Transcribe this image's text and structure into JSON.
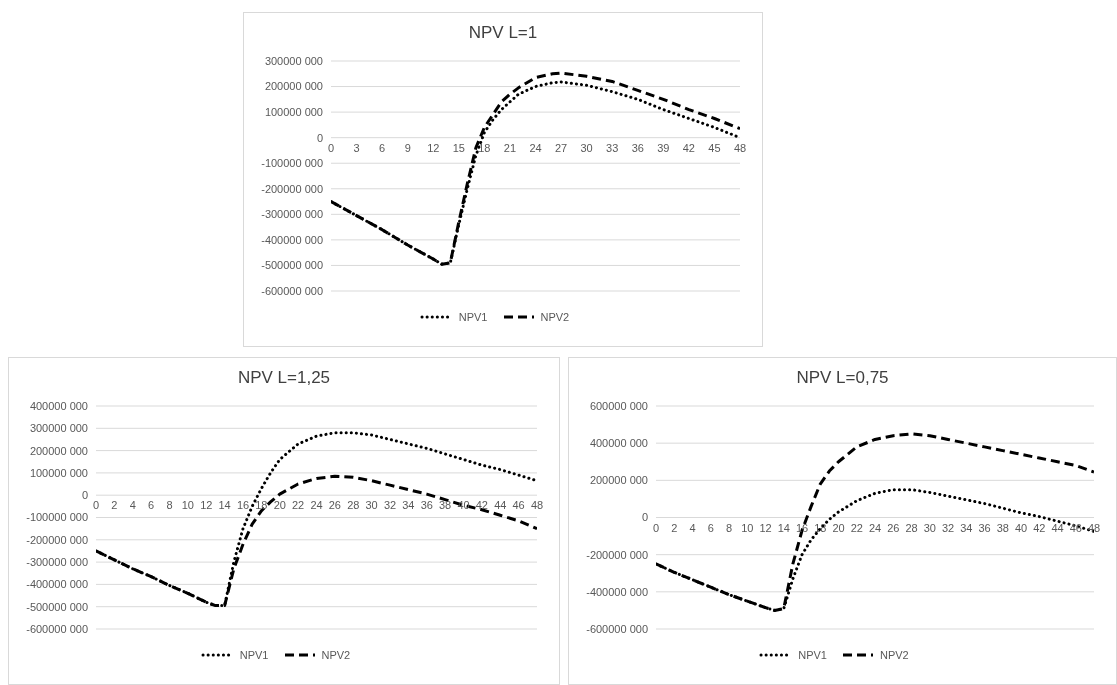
{
  "chart_data": [
    {
      "type": "line",
      "title": "NPV L=1",
      "legend": "bottom",
      "grid": "y",
      "marker": "none",
      "x": [
        0,
        3,
        6,
        9,
        12,
        13,
        14,
        15,
        16,
        17,
        18,
        19,
        20,
        21,
        22,
        24,
        26,
        27,
        30,
        33,
        36,
        39,
        42,
        45,
        48
      ],
      "xlim": [
        0,
        48
      ],
      "xticks": [
        0,
        3,
        6,
        9,
        12,
        15,
        18,
        21,
        24,
        27,
        30,
        33,
        36,
        39,
        42,
        45,
        48
      ],
      "ylim": [
        -600000000,
        300000000
      ],
      "yticks": [
        {
          "value": -600000000,
          "label": "-600000 000"
        },
        {
          "value": -500000000,
          "label": "-500000 000"
        },
        {
          "value": -400000000,
          "label": "-400000 000"
        },
        {
          "value": -300000000,
          "label": "-300000 000"
        },
        {
          "value": -200000000,
          "label": "-200000 000"
        },
        {
          "value": -100000000,
          "label": "-100000 000"
        },
        {
          "value": 0,
          "label": "0"
        },
        {
          "value": 100000000,
          "label": "100000 000"
        },
        {
          "value": 200000000,
          "label": "200000 000"
        },
        {
          "value": 300000000,
          "label": "300000 000"
        }
      ],
      "series": [
        {
          "name": "NPV1",
          "color": "#000000",
          "line_style": "dotted",
          "values": [
            -250000000,
            -305000000,
            -360000000,
            -420000000,
            -475000000,
            -495000000,
            -490000000,
            -340000000,
            -200000000,
            -70000000,
            20000000,
            70000000,
            110000000,
            140000000,
            170000000,
            200000000,
            215000000,
            218000000,
            205000000,
            180000000,
            150000000,
            110000000,
            75000000,
            40000000,
            0
          ]
        },
        {
          "name": "NPV2",
          "color": "#000000",
          "line_style": "dashed",
          "values": [
            -250000000,
            -305000000,
            -360000000,
            -420000000,
            -475000000,
            -495000000,
            -490000000,
            -330000000,
            -180000000,
            -40000000,
            40000000,
            90000000,
            140000000,
            170000000,
            195000000,
            235000000,
            250000000,
            253000000,
            240000000,
            220000000,
            185000000,
            150000000,
            110000000,
            75000000,
            35000000
          ]
        }
      ]
    },
    {
      "type": "line",
      "title": "NPV L=1,25",
      "legend": "bottom",
      "grid": "y",
      "marker": "none",
      "x": [
        0,
        2,
        4,
        6,
        8,
        10,
        12,
        13,
        14,
        15,
        16,
        17,
        18,
        19,
        20,
        22,
        24,
        26,
        28,
        30,
        32,
        34,
        36,
        38,
        40,
        42,
        44,
        46,
        48
      ],
      "xlim": [
        0,
        48
      ],
      "xticks": [
        0,
        2,
        4,
        6,
        8,
        10,
        12,
        14,
        16,
        18,
        20,
        22,
        24,
        26,
        28,
        30,
        32,
        34,
        36,
        38,
        40,
        42,
        44,
        46,
        48
      ],
      "ylim": [
        -600000000,
        400000000
      ],
      "yticks": [
        {
          "value": -600000000,
          "label": "-600000 000"
        },
        {
          "value": -500000000,
          "label": "-500000 000"
        },
        {
          "value": -400000000,
          "label": "-400000 000"
        },
        {
          "value": -300000000,
          "label": "-300000 000"
        },
        {
          "value": -200000000,
          "label": "-200000 000"
        },
        {
          "value": -100000000,
          "label": "-100000 000"
        },
        {
          "value": 0,
          "label": "0"
        },
        {
          "value": 100000000,
          "label": "100000 000"
        },
        {
          "value": 200000000,
          "label": "200000 000"
        },
        {
          "value": 300000000,
          "label": "300000 000"
        },
        {
          "value": 400000000,
          "label": "400000 000"
        }
      ],
      "series": [
        {
          "name": "NPV1",
          "color": "#000000",
          "line_style": "dotted",
          "values": [
            -250000000,
            -290000000,
            -330000000,
            -365000000,
            -405000000,
            -440000000,
            -480000000,
            -495000000,
            -495000000,
            -300000000,
            -150000000,
            -50000000,
            30000000,
            100000000,
            160000000,
            230000000,
            265000000,
            280000000,
            280000000,
            270000000,
            250000000,
            230000000,
            210000000,
            185000000,
            160000000,
            135000000,
            115000000,
            90000000,
            65000000
          ]
        },
        {
          "name": "NPV2",
          "color": "#000000",
          "line_style": "dashed",
          "values": [
            -250000000,
            -290000000,
            -330000000,
            -365000000,
            -405000000,
            -440000000,
            -480000000,
            -495000000,
            -495000000,
            -330000000,
            -220000000,
            -130000000,
            -70000000,
            -30000000,
            5000000,
            50000000,
            75000000,
            85000000,
            80000000,
            65000000,
            45000000,
            25000000,
            5000000,
            -20000000,
            -45000000,
            -65000000,
            -90000000,
            -115000000,
            -150000000
          ]
        }
      ]
    },
    {
      "type": "line",
      "title": "NPV L=0,75",
      "legend": "bottom",
      "grid": "y",
      "marker": "none",
      "x": [
        0,
        2,
        4,
        6,
        8,
        10,
        12,
        13,
        14,
        15,
        16,
        17,
        18,
        19,
        20,
        22,
        24,
        26,
        28,
        30,
        32,
        34,
        36,
        38,
        40,
        42,
        44,
        46,
        48
      ],
      "xlim": [
        0,
        48
      ],
      "xticks": [
        0,
        2,
        4,
        6,
        8,
        10,
        12,
        14,
        16,
        18,
        20,
        22,
        24,
        26,
        28,
        30,
        32,
        34,
        36,
        38,
        40,
        42,
        44,
        46,
        48
      ],
      "ylim": [
        -600000000,
        600000000
      ],
      "yticks": [
        {
          "value": -600000000,
          "label": "-600000 000"
        },
        {
          "value": -400000000,
          "label": "-400000 000"
        },
        {
          "value": -200000000,
          "label": "-200000 000"
        },
        {
          "value": 0,
          "label": "0"
        },
        {
          "value": 200000000,
          "label": "200000 000"
        },
        {
          "value": 400000000,
          "label": "400000 000"
        },
        {
          "value": 600000000,
          "label": "600000 000"
        }
      ],
      "series": [
        {
          "name": "NPV1",
          "color": "#000000",
          "line_style": "dotted",
          "values": [
            -250000000,
            -295000000,
            -335000000,
            -375000000,
            -415000000,
            -450000000,
            -485000000,
            -500000000,
            -490000000,
            -330000000,
            -200000000,
            -120000000,
            -60000000,
            -10000000,
            30000000,
            90000000,
            130000000,
            150000000,
            150000000,
            135000000,
            115000000,
            95000000,
            75000000,
            50000000,
            25000000,
            5000000,
            -20000000,
            -45000000,
            -75000000
          ]
        },
        {
          "name": "NPV2",
          "color": "#000000",
          "line_style": "dashed",
          "values": [
            -250000000,
            -295000000,
            -335000000,
            -375000000,
            -415000000,
            -450000000,
            -485000000,
            -500000000,
            -490000000,
            -250000000,
            -70000000,
            60000000,
            180000000,
            250000000,
            300000000,
            380000000,
            420000000,
            440000000,
            450000000,
            440000000,
            420000000,
            400000000,
            380000000,
            360000000,
            340000000,
            320000000,
            300000000,
            280000000,
            245000000
          ]
        }
      ]
    }
  ]
}
